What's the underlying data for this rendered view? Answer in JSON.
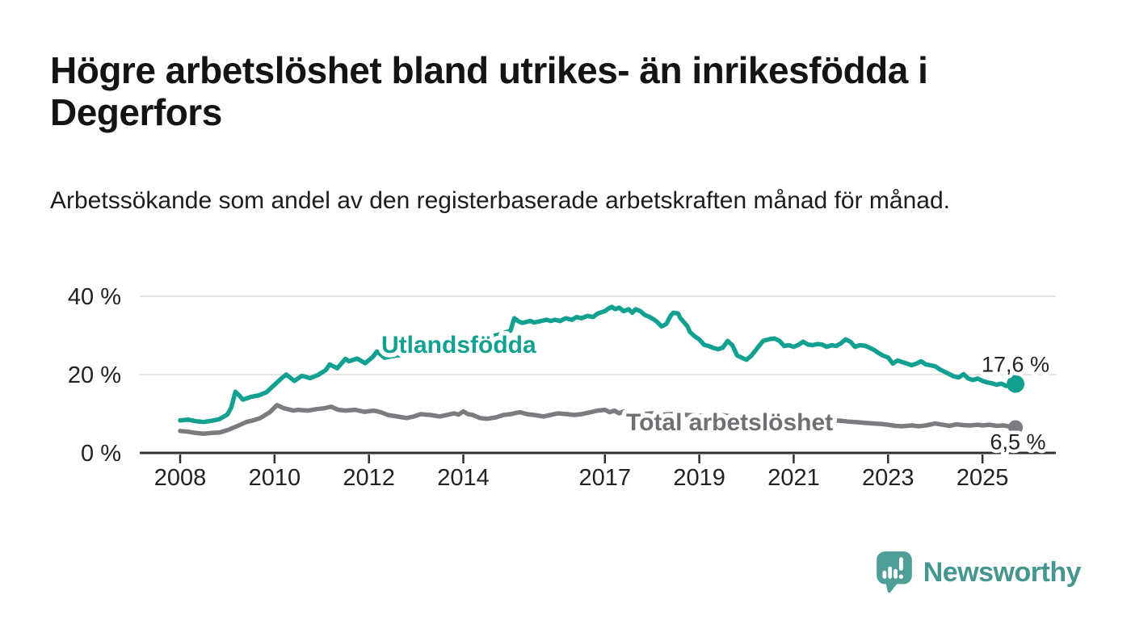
{
  "header": {
    "title": "Högre arbetslöshet bland utrikes- än inrikesfödda i Degerfors",
    "subtitle": "Arbetssökande som andel av den registerbaserade arbetskraften månad för månad."
  },
  "chart_data": {
    "type": "line",
    "title": "Högre arbetslöshet bland utrikes- än inrikesfödda i Degerfors",
    "subtitle": "Arbetssökande som andel av den registerbaserade arbetskraften månad för månad.",
    "x_unit": "year (monthly data)",
    "x_range": [
      2008.0,
      2025.7
    ],
    "ylim": [
      0,
      43
    ],
    "grid": "horizontal gridlines at 20 and 40, dark baseline at 0",
    "legend_position": "inline series labels on chart",
    "yticks": [
      {
        "value": 0,
        "label": "0 %"
      },
      {
        "value": 20,
        "label": "20 %"
      },
      {
        "value": 40,
        "label": "40 %"
      }
    ],
    "xticks": [
      {
        "value": 2008,
        "label": "2008"
      },
      {
        "value": 2010,
        "label": "2010"
      },
      {
        "value": 2012,
        "label": "2012"
      },
      {
        "value": 2014,
        "label": "2014"
      },
      {
        "value": 2017,
        "label": "2017"
      },
      {
        "value": 2019,
        "label": "2019"
      },
      {
        "value": 2021,
        "label": "2021"
      },
      {
        "value": 2023,
        "label": "2023"
      },
      {
        "value": 2025,
        "label": "2025"
      }
    ],
    "series": [
      {
        "name": "Utlandsfödda",
        "color": "#12A191",
        "label_color": "#12A191",
        "end_label": "17,6 %",
        "end_value": 17.6,
        "points": [
          [
            2008.0,
            8.3
          ],
          [
            2008.17,
            8.5
          ],
          [
            2008.33,
            8.1
          ],
          [
            2008.5,
            7.9
          ],
          [
            2008.67,
            8.2
          ],
          [
            2008.83,
            8.6
          ],
          [
            2009.0,
            9.8
          ],
          [
            2009.08,
            11.5
          ],
          [
            2009.17,
            15.6
          ],
          [
            2009.25,
            14.7
          ],
          [
            2009.33,
            13.6
          ],
          [
            2009.5,
            14.3
          ],
          [
            2009.67,
            14.7
          ],
          [
            2009.83,
            15.5
          ],
          [
            2010.0,
            17.4
          ],
          [
            2010.17,
            19.3
          ],
          [
            2010.25,
            20.0
          ],
          [
            2010.42,
            18.4
          ],
          [
            2010.58,
            19.7
          ],
          [
            2010.75,
            19.1
          ],
          [
            2010.92,
            19.9
          ],
          [
            2011.08,
            21.1
          ],
          [
            2011.17,
            22.6
          ],
          [
            2011.33,
            21.6
          ],
          [
            2011.5,
            24.0
          ],
          [
            2011.58,
            23.4
          ],
          [
            2011.75,
            24.1
          ],
          [
            2011.92,
            22.9
          ],
          [
            2012.08,
            24.5
          ],
          [
            2012.17,
            25.9
          ],
          [
            2012.33,
            24.3
          ],
          [
            2012.5,
            24.7
          ],
          [
            2012.75,
            25.2
          ],
          [
            2013.0,
            25.8
          ],
          [
            2013.25,
            26.4
          ],
          [
            2013.5,
            27.0
          ],
          [
            2013.75,
            27.7
          ],
          [
            2014.0,
            28.3
          ],
          [
            2014.25,
            28.9
          ],
          [
            2014.5,
            29.5
          ],
          [
            2014.75,
            30.2
          ],
          [
            2015.0,
            31.2
          ],
          [
            2015.08,
            34.4
          ],
          [
            2015.17,
            33.6
          ],
          [
            2015.25,
            33.2
          ],
          [
            2015.42,
            33.7
          ],
          [
            2015.5,
            33.3
          ],
          [
            2015.65,
            33.7
          ],
          [
            2015.77,
            34.0
          ],
          [
            2015.85,
            33.7
          ],
          [
            2015.94,
            34.0
          ],
          [
            2016.05,
            33.7
          ],
          [
            2016.17,
            34.4
          ],
          [
            2016.3,
            34.0
          ],
          [
            2016.4,
            34.7
          ],
          [
            2016.5,
            34.4
          ],
          [
            2016.63,
            35.0
          ],
          [
            2016.75,
            34.7
          ],
          [
            2016.85,
            35.6
          ],
          [
            2017.0,
            36.2
          ],
          [
            2017.08,
            36.9
          ],
          [
            2017.15,
            37.3
          ],
          [
            2017.22,
            36.7
          ],
          [
            2017.3,
            37.1
          ],
          [
            2017.4,
            36.2
          ],
          [
            2017.5,
            36.7
          ],
          [
            2017.58,
            35.8
          ],
          [
            2017.65,
            36.7
          ],
          [
            2017.75,
            36.2
          ],
          [
            2017.85,
            35.2
          ],
          [
            2017.95,
            34.7
          ],
          [
            2018.05,
            34.0
          ],
          [
            2018.12,
            33.3
          ],
          [
            2018.2,
            32.3
          ],
          [
            2018.3,
            32.9
          ],
          [
            2018.4,
            35.2
          ],
          [
            2018.45,
            35.8
          ],
          [
            2018.55,
            35.6
          ],
          [
            2018.6,
            34.4
          ],
          [
            2018.75,
            32.3
          ],
          [
            2018.8,
            30.9
          ],
          [
            2018.9,
            29.8
          ],
          [
            2019.0,
            29.0
          ],
          [
            2019.1,
            27.6
          ],
          [
            2019.2,
            27.3
          ],
          [
            2019.3,
            26.8
          ],
          [
            2019.4,
            26.5
          ],
          [
            2019.5,
            26.9
          ],
          [
            2019.6,
            28.6
          ],
          [
            2019.7,
            27.5
          ],
          [
            2019.8,
            24.9
          ],
          [
            2019.9,
            24.3
          ],
          [
            2020.0,
            23.8
          ],
          [
            2020.1,
            24.8
          ],
          [
            2020.2,
            26.3
          ],
          [
            2020.35,
            28.6
          ],
          [
            2020.5,
            29.1
          ],
          [
            2020.6,
            29.2
          ],
          [
            2020.7,
            28.6
          ],
          [
            2020.8,
            27.3
          ],
          [
            2020.9,
            27.5
          ],
          [
            2021.0,
            27.1
          ],
          [
            2021.1,
            27.6
          ],
          [
            2021.2,
            28.4
          ],
          [
            2021.3,
            27.7
          ],
          [
            2021.4,
            27.5
          ],
          [
            2021.5,
            27.8
          ],
          [
            2021.6,
            27.7
          ],
          [
            2021.7,
            27.1
          ],
          [
            2021.8,
            27.5
          ],
          [
            2021.9,
            27.3
          ],
          [
            2022.0,
            28.0
          ],
          [
            2022.1,
            29.0
          ],
          [
            2022.2,
            28.4
          ],
          [
            2022.3,
            27.1
          ],
          [
            2022.4,
            27.5
          ],
          [
            2022.5,
            27.4
          ],
          [
            2022.6,
            26.9
          ],
          [
            2022.7,
            26.3
          ],
          [
            2022.8,
            25.5
          ],
          [
            2022.9,
            24.8
          ],
          [
            2023.0,
            24.4
          ],
          [
            2023.1,
            22.8
          ],
          [
            2023.2,
            23.6
          ],
          [
            2023.3,
            23.2
          ],
          [
            2023.4,
            22.8
          ],
          [
            2023.5,
            22.4
          ],
          [
            2023.6,
            22.8
          ],
          [
            2023.7,
            23.4
          ],
          [
            2023.8,
            22.6
          ],
          [
            2023.9,
            22.4
          ],
          [
            2024.0,
            22.1
          ],
          [
            2024.1,
            21.3
          ],
          [
            2024.2,
            20.7
          ],
          [
            2024.3,
            20.1
          ],
          [
            2024.4,
            19.5
          ],
          [
            2024.5,
            19.3
          ],
          [
            2024.6,
            20.1
          ],
          [
            2024.7,
            19.0
          ],
          [
            2024.8,
            18.6
          ],
          [
            2024.9,
            19.0
          ],
          [
            2025.0,
            18.4
          ],
          [
            2025.1,
            18.0
          ],
          [
            2025.2,
            17.8
          ],
          [
            2025.3,
            17.4
          ],
          [
            2025.4,
            17.7
          ],
          [
            2025.5,
            17.1
          ],
          [
            2025.6,
            17.3
          ],
          [
            2025.7,
            17.6
          ]
        ]
      },
      {
        "name": "Total arbetslöshet",
        "color": "#7B7B80",
        "label_color": "#6F6F74",
        "end_label": "6,5 %",
        "end_value": 6.5,
        "points": [
          [
            2008.0,
            5.6
          ],
          [
            2008.17,
            5.4
          ],
          [
            2008.33,
            5.1
          ],
          [
            2008.5,
            4.9
          ],
          [
            2008.67,
            5.1
          ],
          [
            2008.83,
            5.2
          ],
          [
            2009.0,
            5.8
          ],
          [
            2009.2,
            6.8
          ],
          [
            2009.4,
            7.9
          ],
          [
            2009.55,
            8.3
          ],
          [
            2009.7,
            8.9
          ],
          [
            2009.9,
            10.4
          ],
          [
            2010.05,
            12.2
          ],
          [
            2010.2,
            11.4
          ],
          [
            2010.4,
            10.8
          ],
          [
            2010.5,
            11.0
          ],
          [
            2010.7,
            10.8
          ],
          [
            2010.9,
            11.2
          ],
          [
            2011.05,
            11.4
          ],
          [
            2011.2,
            11.8
          ],
          [
            2011.35,
            11.0
          ],
          [
            2011.5,
            10.8
          ],
          [
            2011.7,
            11.0
          ],
          [
            2011.9,
            10.5
          ],
          [
            2012.1,
            10.8
          ],
          [
            2012.25,
            10.4
          ],
          [
            2012.4,
            9.7
          ],
          [
            2012.6,
            9.3
          ],
          [
            2012.8,
            8.9
          ],
          [
            2012.95,
            9.3
          ],
          [
            2013.1,
            9.9
          ],
          [
            2013.3,
            9.7
          ],
          [
            2013.5,
            9.3
          ],
          [
            2013.65,
            9.7
          ],
          [
            2013.8,
            10.1
          ],
          [
            2013.9,
            9.8
          ],
          [
            2014.0,
            10.6
          ],
          [
            2014.1,
            9.9
          ],
          [
            2014.2,
            9.7
          ],
          [
            2014.35,
            8.9
          ],
          [
            2014.5,
            8.7
          ],
          [
            2014.7,
            9.1
          ],
          [
            2014.85,
            9.7
          ],
          [
            2015.0,
            9.9
          ],
          [
            2015.2,
            10.4
          ],
          [
            2015.35,
            9.9
          ],
          [
            2015.5,
            9.7
          ],
          [
            2015.7,
            9.3
          ],
          [
            2015.85,
            9.7
          ],
          [
            2016.0,
            10.1
          ],
          [
            2016.2,
            9.9
          ],
          [
            2016.35,
            9.7
          ],
          [
            2016.5,
            9.9
          ],
          [
            2016.7,
            10.4
          ],
          [
            2016.85,
            10.8
          ],
          [
            2017.0,
            11.0
          ],
          [
            2017.1,
            10.4
          ],
          [
            2017.2,
            10.8
          ],
          [
            2017.3,
            10.1
          ],
          [
            2017.4,
            10.6
          ],
          [
            2017.55,
            10.2
          ],
          [
            2017.75,
            9.9
          ],
          [
            2018.0,
            10.1
          ],
          [
            2018.25,
            9.8
          ],
          [
            2018.5,
            10.0
          ],
          [
            2018.75,
            9.7
          ],
          [
            2019.0,
            9.5
          ],
          [
            2019.25,
            9.3
          ],
          [
            2019.5,
            9.6
          ],
          [
            2019.75,
            9.2
          ],
          [
            2020.0,
            9.0
          ],
          [
            2020.25,
            9.4
          ],
          [
            2020.5,
            9.7
          ],
          [
            2020.75,
            9.3
          ],
          [
            2021.0,
            9.0
          ],
          [
            2021.25,
            8.8
          ],
          [
            2021.5,
            8.6
          ],
          [
            2021.75,
            8.4
          ],
          [
            2022.0,
            8.2
          ],
          [
            2022.15,
            8.0
          ],
          [
            2022.3,
            7.9
          ],
          [
            2022.5,
            7.7
          ],
          [
            2022.7,
            7.5
          ],
          [
            2022.85,
            7.4
          ],
          [
            2023.0,
            7.2
          ],
          [
            2023.15,
            6.9
          ],
          [
            2023.3,
            6.8
          ],
          [
            2023.5,
            7.0
          ],
          [
            2023.65,
            6.8
          ],
          [
            2023.8,
            7.0
          ],
          [
            2024.0,
            7.5
          ],
          [
            2024.15,
            7.2
          ],
          [
            2024.3,
            6.9
          ],
          [
            2024.45,
            7.3
          ],
          [
            2024.6,
            7.1
          ],
          [
            2024.75,
            7.0
          ],
          [
            2024.9,
            7.2
          ],
          [
            2025.0,
            7.0
          ],
          [
            2025.15,
            7.2
          ],
          [
            2025.3,
            6.9
          ],
          [
            2025.45,
            7.0
          ],
          [
            2025.55,
            6.8
          ],
          [
            2025.7,
            6.5
          ]
        ]
      }
    ],
    "colors": {
      "gridline": "#DCDCDC",
      "axis_line": "#2F2F2F",
      "tick_label": "#222222",
      "value_label": "#222222"
    }
  },
  "footer": {
    "brand": "Newsworthy",
    "brand_color": "#45968F",
    "icon": "newsworthy-speech-bubble-chart-icon",
    "icon_color": "#4F9E98"
  }
}
